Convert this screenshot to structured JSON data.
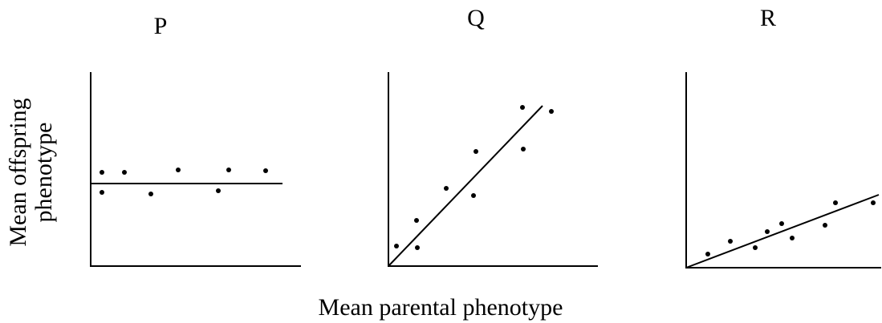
{
  "panels": [
    {
      "title": "P"
    },
    {
      "title": "Q"
    },
    {
      "title": "R"
    }
  ],
  "y_axis_label": [
    "Mean offspring",
    "phenotype"
  ],
  "x_axis_label": "Mean parental phenotype"
}
